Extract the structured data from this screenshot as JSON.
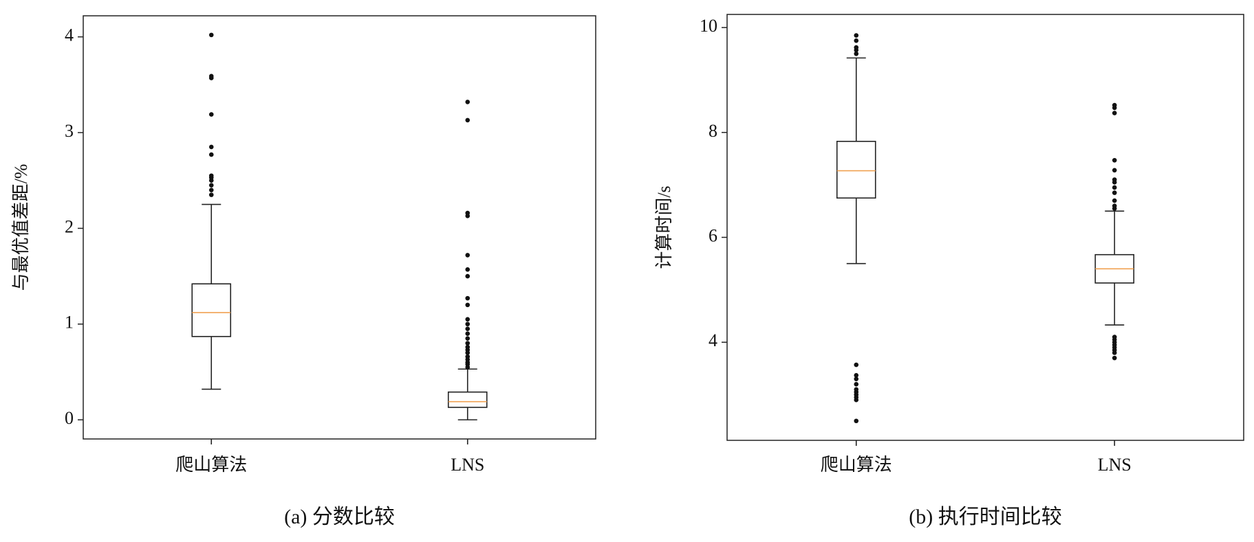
{
  "chart_data": [
    {
      "type": "box",
      "y_label": "与最优值差距/%",
      "caption": "(a) 分数比较",
      "categories": [
        "爬山算法",
        "LNS"
      ],
      "ylim": [
        -0.2,
        4.22
      ],
      "yticks": [
        0,
        1,
        2,
        3,
        4
      ],
      "box_color": "#222222",
      "median_color": "#f0a050",
      "flier_color": "#111111",
      "boxes": [
        {
          "whislo": 0.32,
          "q1": 0.87,
          "med": 1.12,
          "q3": 1.42,
          "whishi": 2.25,
          "fliers": [
            2.35,
            2.4,
            2.45,
            2.5,
            2.53,
            2.55,
            2.77,
            2.85,
            3.19,
            3.57,
            3.59,
            4.02
          ]
        },
        {
          "whislo": 0.0,
          "q1": 0.13,
          "med": 0.19,
          "q3": 0.29,
          "whishi": 0.53,
          "fliers": [
            0.55,
            0.58,
            0.6,
            0.63,
            0.66,
            0.7,
            0.73,
            0.76,
            0.8,
            0.85,
            0.9,
            0.95,
            1.0,
            1.05,
            1.2,
            1.27,
            1.5,
            1.57,
            1.72,
            2.13,
            2.16,
            3.13,
            3.32
          ]
        }
      ]
    },
    {
      "type": "box",
      "y_label": "计算时间/s",
      "caption": "(b) 执行时间比较",
      "categories": [
        "爬山算法",
        "LNS"
      ],
      "ylim": [
        2.13,
        10.25
      ],
      "yticks": [
        4,
        6,
        8,
        10
      ],
      "box_color": "#222222",
      "median_color": "#f0a050",
      "flier_color": "#111111",
      "boxes": [
        {
          "whislo": 5.5,
          "q1": 6.75,
          "med": 7.27,
          "q3": 7.83,
          "whishi": 9.42,
          "fliers": [
            9.5,
            9.57,
            9.62,
            9.75,
            9.85,
            2.5,
            2.9,
            2.95,
            3.0,
            3.05,
            3.1,
            3.2,
            3.3,
            3.37,
            3.57
          ]
        },
        {
          "whislo": 4.33,
          "q1": 5.13,
          "med": 5.4,
          "q3": 5.67,
          "whishi": 6.5,
          "fliers": [
            6.55,
            6.6,
            6.7,
            6.85,
            6.95,
            7.05,
            7.1,
            7.28,
            7.47,
            8.37,
            8.47,
            8.52,
            3.7,
            3.8,
            3.85,
            3.9,
            3.95,
            4.0,
            4.05,
            4.1
          ]
        }
      ]
    }
  ]
}
